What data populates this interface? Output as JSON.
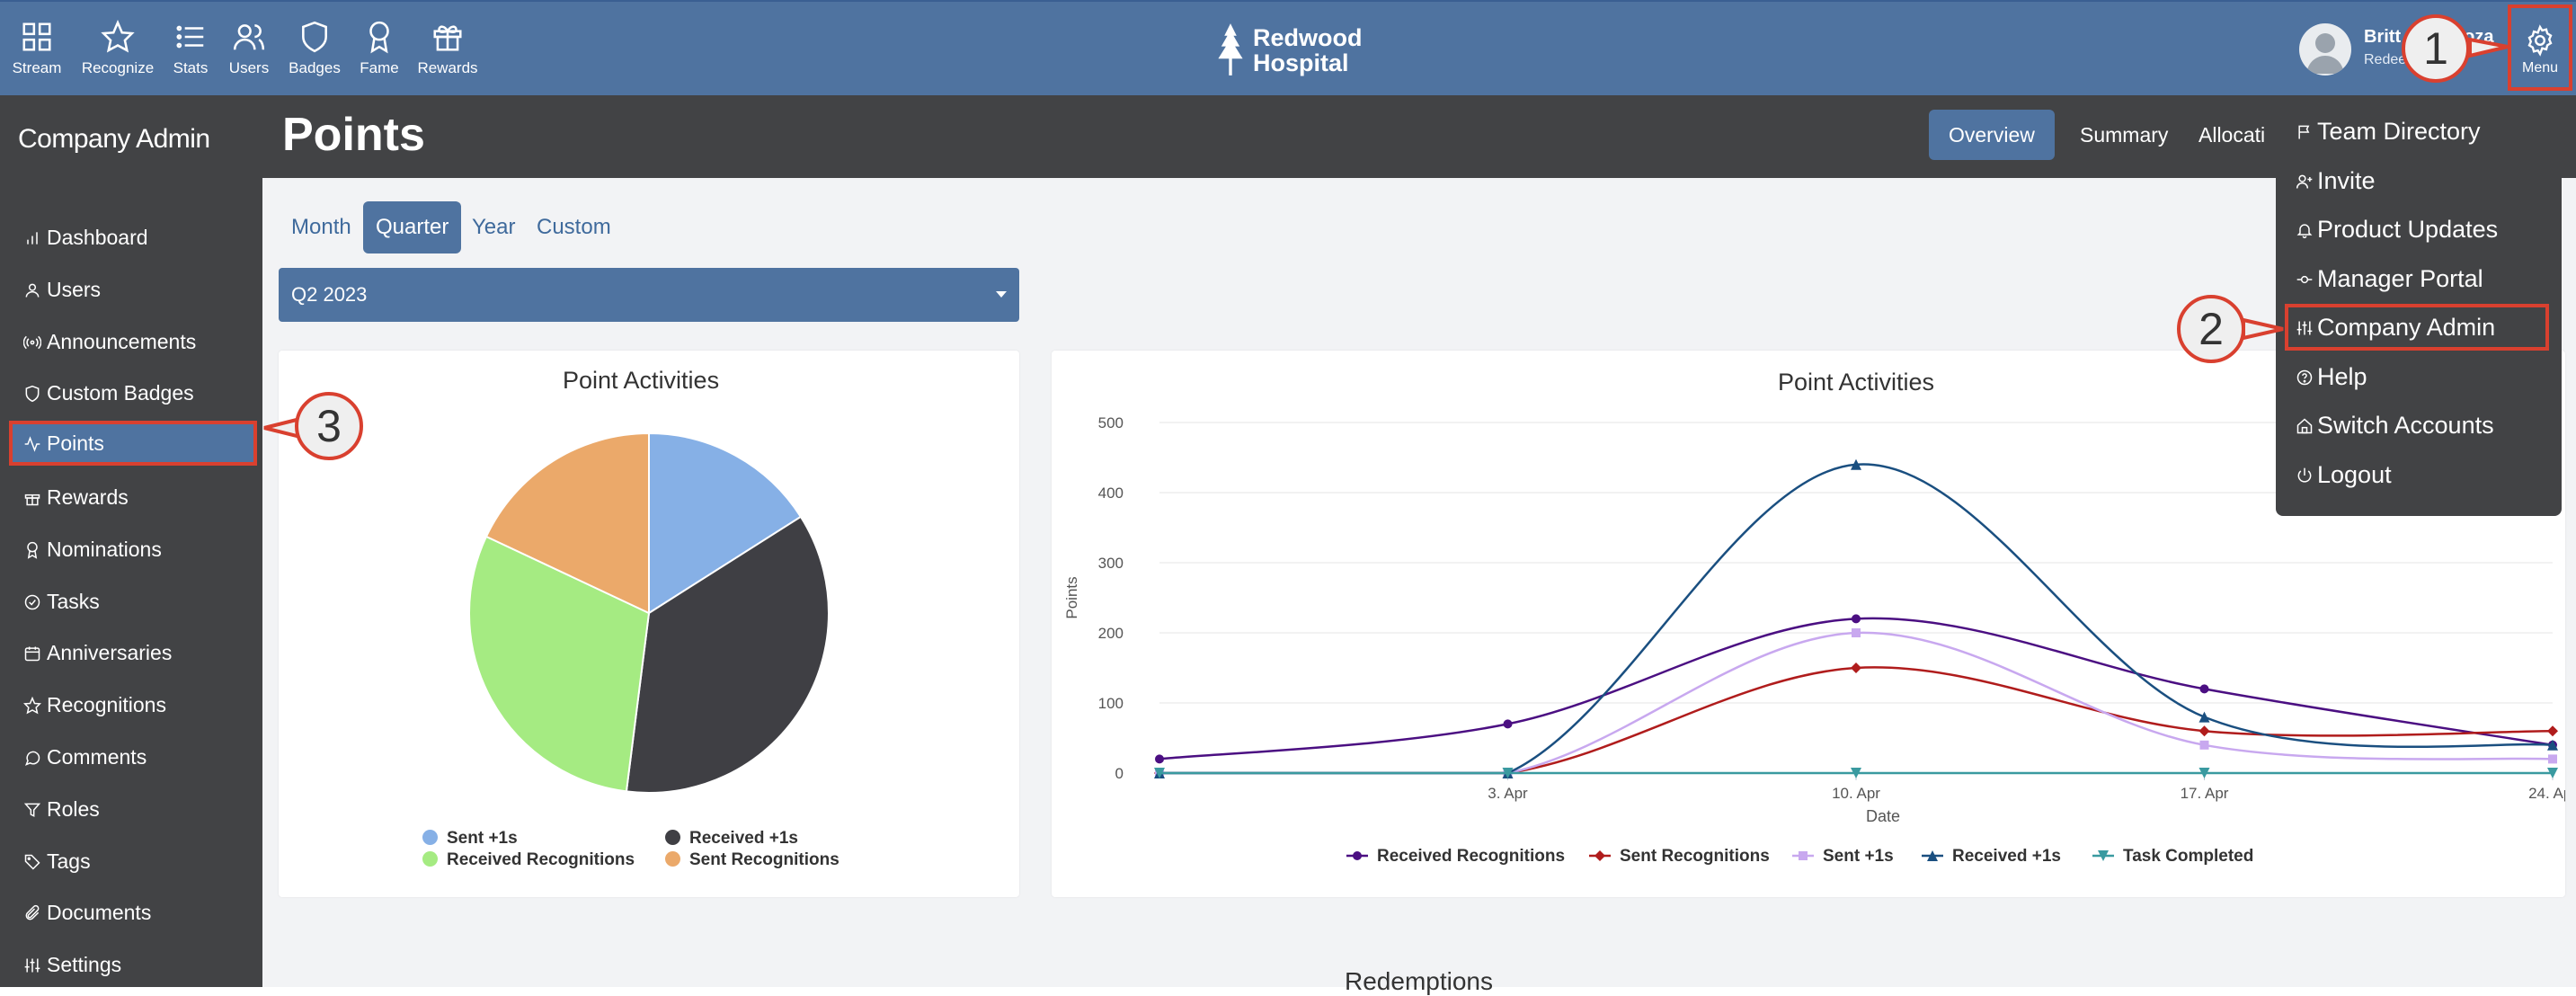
{
  "topnav": {
    "items": [
      {
        "label": "Stream",
        "icon": "grid-icon"
      },
      {
        "label": "Recognize",
        "icon": "star-icon"
      },
      {
        "label": "Stats",
        "icon": "list-icon"
      },
      {
        "label": "Users",
        "icon": "users-icon"
      },
      {
        "label": "Badges",
        "icon": "shield-icon"
      },
      {
        "label": "Fame",
        "icon": "award-icon"
      },
      {
        "label": "Rewards",
        "icon": "gift-icon"
      }
    ],
    "brand_line1": "Redwood",
    "brand_line2": "Hospital",
    "user_name": "Britt",
    "user_name_tail": "oza",
    "user_sub": "Redee",
    "menu_label": "Menu"
  },
  "sidebar": {
    "title": "Company Admin",
    "items": [
      {
        "label": "Dashboard",
        "icon": "bar-chart-icon"
      },
      {
        "label": "Users",
        "icon": "user-icon"
      },
      {
        "label": "Announcements",
        "icon": "broadcast-icon"
      },
      {
        "label": "Custom Badges",
        "icon": "shield-icon"
      },
      {
        "label": "Points",
        "icon": "activity-icon",
        "active": true
      },
      {
        "label": "Rewards",
        "icon": "gift-icon"
      },
      {
        "label": "Nominations",
        "icon": "award-icon"
      },
      {
        "label": "Tasks",
        "icon": "check-circle-icon"
      },
      {
        "label": "Anniversaries",
        "icon": "calendar-icon"
      },
      {
        "label": "Recognitions",
        "icon": "star-icon"
      },
      {
        "label": "Comments",
        "icon": "comment-icon"
      },
      {
        "label": "Roles",
        "icon": "filter-icon"
      },
      {
        "label": "Tags",
        "icon": "tag-icon"
      },
      {
        "label": "Documents",
        "icon": "paperclip-icon"
      },
      {
        "label": "Settings",
        "icon": "sliders-icon"
      }
    ]
  },
  "header": {
    "title": "Points",
    "tabs": [
      {
        "label": "Overview",
        "active": true
      },
      {
        "label": "Summary"
      },
      {
        "label": "Allocati"
      }
    ]
  },
  "period_tabs": [
    {
      "label": "Month"
    },
    {
      "label": "Quarter",
      "active": true
    },
    {
      "label": "Year"
    },
    {
      "label": "Custom"
    }
  ],
  "period_select": {
    "value": "Q2 2023"
  },
  "dropdown": {
    "items": [
      {
        "label": "Team Directory",
        "icon": "flag-icon"
      },
      {
        "label": "Invite",
        "icon": "user-plus-icon"
      },
      {
        "label": "Product Updates",
        "icon": "bell-icon"
      },
      {
        "label": "Manager Portal",
        "icon": "git-commit-icon"
      },
      {
        "label": "Company Admin",
        "icon": "sliders-icon",
        "highlighted": true
      },
      {
        "label": "Help",
        "icon": "help-circle-icon"
      },
      {
        "label": "Switch Accounts",
        "icon": "home-icon"
      },
      {
        "label": "Logout",
        "icon": "power-icon"
      }
    ]
  },
  "callouts": [
    "1",
    "2",
    "3"
  ],
  "redemptions_title": "Redemptions",
  "colors": {
    "primary": "#4f73a0",
    "dark": "#424345",
    "highlight": "#d9402f"
  },
  "chart_data": [
    {
      "type": "pie",
      "title": "Point Activities",
      "slices": [
        {
          "name": "Sent +1s",
          "value": 16,
          "color": "#86b0e6"
        },
        {
          "name": "Received +1s",
          "value": 36,
          "color": "#3f3f44"
        },
        {
          "name": "Received Recognitions",
          "value": 30,
          "color": "#a5eb82"
        },
        {
          "name": "Sent Recognitions",
          "value": 18,
          "color": "#eba96a"
        }
      ],
      "legend_position": "bottom"
    },
    {
      "type": "line",
      "title": "Point Activities",
      "xlabel": "Date",
      "ylabel": "Points",
      "ylim": [
        0,
        500
      ],
      "yticks": [
        0,
        100,
        200,
        300,
        400,
        500
      ],
      "x": [
        "2023-03-27",
        "2023-04-03",
        "2023-04-10",
        "2023-04-17",
        "2023-04-24"
      ],
      "xtick_labels": [
        "3. Apr",
        "10. Apr",
        "17. Apr",
        "24. Apr"
      ],
      "series": [
        {
          "name": "Received Recognitions",
          "color": "#4b0f82",
          "marker": "circle",
          "values": [
            20,
            70,
            220,
            120,
            40
          ]
        },
        {
          "name": "Sent Recognitions",
          "color": "#b01c1c",
          "marker": "diamond",
          "values": [
            0,
            0,
            150,
            60,
            60
          ]
        },
        {
          "name": "Sent +1s",
          "color": "#c8a8ef",
          "marker": "square",
          "values": [
            0,
            0,
            200,
            40,
            20
          ]
        },
        {
          "name": "Received +1s",
          "color": "#1a4f80",
          "marker": "triangle",
          "values": [
            0,
            0,
            440,
            80,
            40
          ]
        },
        {
          "name": "Task Completed",
          "color": "#3a9aa0",
          "marker": "triangle-down",
          "values": [
            0,
            0,
            0,
            0,
            0
          ]
        }
      ],
      "grid": true,
      "legend_position": "bottom"
    }
  ]
}
